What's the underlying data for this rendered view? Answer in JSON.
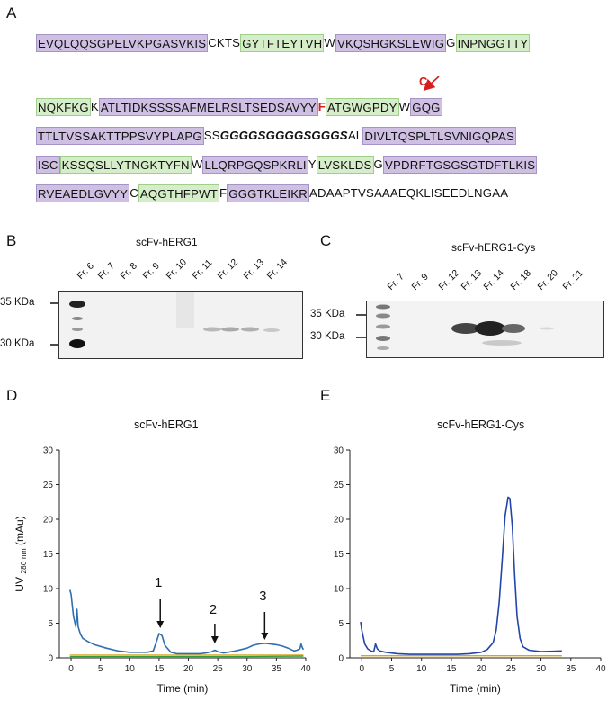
{
  "panels": {
    "A": "A",
    "B": "B",
    "C": "C",
    "D": "D",
    "E": "E"
  },
  "sequence": {
    "mutation_label": "C",
    "lines": [
      [
        {
          "t": "EVQLQQSGPELVKPGASVKIS",
          "c": "purple"
        },
        {
          "t": "CKTS",
          "c": "plain"
        },
        {
          "t": "GYTFTEYTVH",
          "c": "green"
        },
        {
          "t": "W",
          "c": "plain"
        },
        {
          "t": "VKQSHGKSLEWIG",
          "c": "purple"
        },
        {
          "t": "G",
          "c": "plain"
        },
        {
          "t": "INPNGGTTY",
          "c": "green"
        }
      ],
      [
        {
          "t": "NQKFKG",
          "c": "green"
        },
        {
          "t": "K",
          "c": "plain"
        },
        {
          "t": "ATLTIDKSSSSAFMELRSLTSEDSAVYY",
          "c": "purple"
        },
        {
          "t": "F",
          "c": "mut"
        },
        {
          "t": "ATGWGPDY",
          "c": "green"
        },
        {
          "t": "W",
          "c": "plain"
        },
        {
          "t": "GQG",
          "c": "purple"
        }
      ],
      [
        {
          "t": "TTLTVSSAKTTPPSVYPLAPG",
          "c": "purple"
        },
        {
          "t": "SS",
          "c": "plain"
        },
        {
          "t": "GGGGSGGGGSGGGS",
          "c": "linker"
        },
        {
          "t": "AL",
          "c": "plain"
        },
        {
          "t": "DIVLTQSPLTLSVNIGQPAS",
          "c": "purple"
        }
      ],
      [
        {
          "t": "ISC",
          "c": "purple"
        },
        {
          "t": "KSSQSLLYTNGKTYFN",
          "c": "green"
        },
        {
          "t": "W",
          "c": "plain"
        },
        {
          "t": "LLQRPGQSPKRLI",
          "c": "purple"
        },
        {
          "t": "Y",
          "c": "plain"
        },
        {
          "t": "LVSKLDS",
          "c": "green"
        },
        {
          "t": "G",
          "c": "plain"
        },
        {
          "t": "VPDRFTGSGSGTDFTLKIS",
          "c": "purple"
        }
      ],
      [
        {
          "t": "RVEAEDLGVYY",
          "c": "purple"
        },
        {
          "t": "C",
          "c": "plain"
        },
        {
          "t": "AQGTHFPWT",
          "c": "green"
        },
        {
          "t": "F",
          "c": "plain"
        },
        {
          "t": "GGGTKLEIKR",
          "c": "purple"
        },
        {
          "t": "ADAAPTVSAAAEQKLISEEDLNGAA",
          "c": "plain"
        }
      ]
    ]
  },
  "gel_b": {
    "title": "scFv-hERG1",
    "lanes": [
      "Fr. 6",
      "Fr. 7",
      "Fr. 8",
      "Fr. 9",
      "Fr. 10",
      "Fr. 11",
      "Fr. 12",
      "Fr. 13",
      "Fr. 14"
    ],
    "markers": [
      "35 KDa",
      "30 KDa"
    ]
  },
  "gel_c": {
    "title": "scFv-hERG1-Cys",
    "lanes": [
      "Fr. 7",
      "Fr. 9",
      "Fr. 12",
      "Fr. 13",
      "Fr. 14",
      "Fr. 18",
      "Fr. 20",
      "Fr. 21"
    ],
    "markers": [
      "35 KDa",
      "30 KDa"
    ]
  },
  "chart_data": [
    {
      "type": "line",
      "title": "scFv-hERG1",
      "xlabel": "Time (min)",
      "ylabel": "UV 280 nm (mAu)",
      "ylabel_main": "UV",
      "ylabel_sub": "280 nm",
      "ylabel_unit": "(mAu)",
      "xlim": [
        -2,
        40
      ],
      "ylim": [
        0,
        30
      ],
      "xticks": [
        0,
        5,
        10,
        15,
        20,
        25,
        30,
        35,
        40
      ],
      "yticks": [
        0,
        5,
        10,
        15,
        20,
        25,
        30
      ],
      "annotations": [
        {
          "label": "1",
          "x": 15.2
        },
        {
          "label": "2",
          "x": 24.5
        },
        {
          "label": "3",
          "x": 33.0
        }
      ],
      "series": [
        {
          "color": "#2f6fb0",
          "x": [
            -0.2,
            0,
            0.4,
            0.8,
            1.0,
            1.2,
            1.6,
            2,
            3,
            4,
            6,
            8,
            10,
            12,
            13,
            14,
            14.5,
            15,
            15.5,
            16,
            17,
            18,
            20,
            22,
            23,
            24,
            24.5,
            25,
            26,
            28,
            30,
            31,
            32,
            33,
            34,
            35,
            36,
            37,
            38,
            38.5,
            39,
            39.2,
            39.4,
            39.6
          ],
          "y": [
            9.8,
            9.2,
            6.0,
            4.5,
            7.0,
            4.5,
            3.4,
            2.8,
            2.3,
            1.9,
            1.4,
            1.0,
            0.8,
            0.8,
            0.8,
            1.0,
            2.2,
            3.5,
            3.2,
            1.8,
            0.8,
            0.6,
            0.6,
            0.6,
            0.7,
            0.9,
            1.1,
            0.9,
            0.7,
            1.0,
            1.4,
            1.8,
            2.0,
            2.1,
            2.0,
            1.9,
            1.7,
            1.4,
            1.0,
            1.1,
            1.3,
            2.0,
            1.5,
            1.2
          ]
        },
        {
          "color": "#d9a520",
          "x": [
            -0.2,
            10,
            20,
            30,
            39.6
          ],
          "y": [
            0.4,
            0.4,
            0.4,
            0.4,
            0.4
          ]
        },
        {
          "color": "#3a9a3a",
          "x": [
            -0.2,
            10,
            20,
            30,
            39.6
          ],
          "y": [
            0.2,
            0.2,
            0.2,
            0.2,
            0.25
          ]
        }
      ]
    },
    {
      "type": "line",
      "title": "scFv-hERG1-Cys",
      "xlabel": "Time (min)",
      "ylabel": "",
      "xlim": [
        -2,
        40
      ],
      "ylim": [
        0,
        30
      ],
      "xticks": [
        0,
        5,
        10,
        15,
        20,
        25,
        30,
        35,
        40
      ],
      "yticks": [
        0,
        5,
        10,
        15,
        20,
        25,
        30
      ],
      "series": [
        {
          "color": "#2345a8",
          "x": [
            -0.2,
            0,
            0.5,
            1.0,
            1.5,
            2,
            2.3,
            2.6,
            3,
            4,
            6,
            8,
            10,
            12,
            14,
            16,
            18,
            20,
            21,
            22,
            22.5,
            23,
            23.5,
            24,
            24.5,
            24.8,
            25.2,
            25.6,
            26,
            26.5,
            27,
            28,
            30,
            32,
            33.5
          ],
          "y": [
            5.2,
            4.0,
            2.0,
            1.3,
            1.0,
            0.9,
            2.0,
            1.3,
            1.0,
            0.8,
            0.6,
            0.5,
            0.5,
            0.5,
            0.5,
            0.5,
            0.6,
            0.8,
            1.2,
            2.2,
            4.0,
            8.0,
            14.0,
            20.5,
            23.2,
            23.0,
            19.0,
            12.0,
            6.0,
            2.8,
            1.6,
            1.1,
            0.9,
            0.95,
            1.0
          ]
        },
        {
          "color": "#d9a520",
          "x": [
            -0.2,
            10,
            20,
            33.5
          ],
          "y": [
            0.3,
            0.3,
            0.3,
            0.3
          ]
        }
      ]
    }
  ]
}
